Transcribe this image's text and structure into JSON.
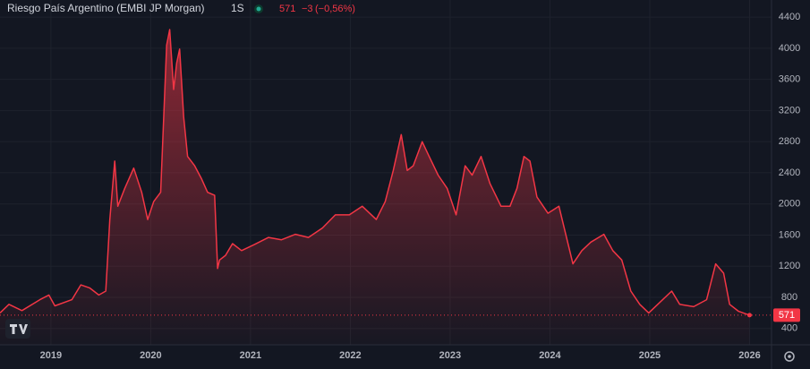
{
  "chart_data": {
    "type": "area",
    "title": "Riesgo País Argentino (EMBI JP Morgan)",
    "interval": "1S",
    "header_last": 571,
    "header_change_label": "−3",
    "header_change_percent_label": "(−0,56%)",
    "color": "#f23645",
    "grid": true,
    "xlim": [
      2018.49,
      2026.22
    ],
    "xticks": [
      2019,
      2020,
      2021,
      2022,
      2023,
      2024,
      2025,
      2026
    ],
    "ylim": [
      190,
      4620
    ],
    "yticks": [
      400,
      800,
      1200,
      1600,
      2000,
      2400,
      2800,
      3200,
      3600,
      4000,
      4400
    ],
    "x": [
      2018.49,
      2018.58,
      2018.71,
      2018.89,
      2018.98,
      2019.04,
      2019.21,
      2019.3,
      2019.39,
      2019.48,
      2019.55,
      2019.59,
      2019.64,
      2019.67,
      2019.74,
      2019.83,
      2019.91,
      2019.97,
      2020.03,
      2020.1,
      2020.16,
      2020.19,
      2020.23,
      2020.26,
      2020.29,
      2020.33,
      2020.37,
      2020.44,
      2020.51,
      2020.57,
      2020.64,
      2020.67,
      2020.69,
      2020.75,
      2020.82,
      2020.91,
      2021.04,
      2021.18,
      2021.31,
      2021.45,
      2021.58,
      2021.72,
      2021.85,
      2021.99,
      2022.12,
      2022.26,
      2022.35,
      2022.43,
      2022.51,
      2022.57,
      2022.63,
      2022.72,
      2022.79,
      2022.88,
      2022.97,
      2023.06,
      2023.15,
      2023.22,
      2023.31,
      2023.4,
      2023.51,
      2023.6,
      2023.67,
      2023.74,
      2023.8,
      2023.87,
      2023.98,
      2024.09,
      2024.23,
      2024.32,
      2024.41,
      2024.54,
      2024.63,
      2024.72,
      2024.81,
      2024.9,
      2024.99,
      2025.08,
      2025.22,
      2025.3,
      2025.44,
      2025.57,
      2025.66,
      2025.74,
      2025.8,
      2025.89,
      2026.0
    ],
    "values": [
      600,
      710,
      630,
      770,
      830,
      690,
      770,
      960,
      920,
      830,
      880,
      1800,
      2550,
      1970,
      2200,
      2460,
      2150,
      1800,
      2030,
      2150,
      4040,
      4240,
      3470,
      3810,
      3990,
      3120,
      2610,
      2490,
      2320,
      2150,
      2110,
      1170,
      1280,
      1340,
      1490,
      1400,
      1480,
      1570,
      1540,
      1610,
      1570,
      1690,
      1860,
      1860,
      1970,
      1800,
      2030,
      2430,
      2890,
      2430,
      2490,
      2800,
      2610,
      2370,
      2200,
      1860,
      2490,
      2370,
      2610,
      2260,
      1970,
      1970,
      2200,
      2610,
      2550,
      2090,
      1880,
      1970,
      1230,
      1400,
      1510,
      1610,
      1400,
      1280,
      880,
      710,
      600,
      710,
      880,
      710,
      680,
      770,
      1230,
      1110,
      710,
      620,
      571
    ]
  }
}
